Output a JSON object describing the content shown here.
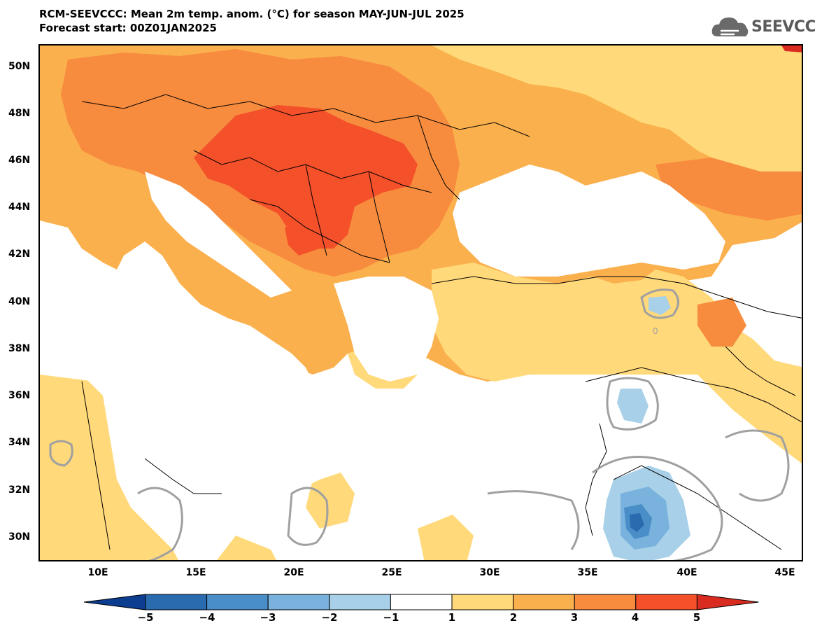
{
  "title": {
    "line1": "RCM-SEEVCCC: Mean 2m temp. anom. (°C) for season MAY-JUN-JUL 2025",
    "line2": "Forecast start: 00Z01JAN2025"
  },
  "logo": {
    "text": "SEEVCCC",
    "icon": "cloud-icon"
  },
  "map": {
    "lat_labels": [
      "50N",
      "48N",
      "46N",
      "44N",
      "42N",
      "40N",
      "38N",
      "36N",
      "34N",
      "32N",
      "30N"
    ],
    "lon_labels": [
      "10E",
      "15E",
      "20E",
      "25E",
      "30E",
      "35E",
      "40E",
      "45E"
    ],
    "contour_label": "0"
  },
  "colorbar": {
    "labels": [
      "−5",
      "−4",
      "−3",
      "−2",
      "−1",
      "1",
      "2",
      "3",
      "4",
      "5"
    ],
    "colors": [
      "#0b3d91",
      "#2a6bb0",
      "#4a8ec8",
      "#79b2dd",
      "#a8d0e8",
      "#ffffff",
      "#ffd97a",
      "#fbb04e",
      "#f78c3e",
      "#f4502a",
      "#d92b20"
    ]
  },
  "colors": {
    "anom_1_2": "#ffd97a",
    "anom_2_3": "#fbb04e",
    "anom_3_4": "#f78c3e",
    "anom_4_5": "#f4502a",
    "anom_m1_m2": "#a8d0e8",
    "anom_m2_m3": "#79b2dd",
    "anom_m3_m4": "#4a8ec8",
    "anom_m4_m5": "#2a6bb0",
    "contour": "#a0a0a0"
  }
}
